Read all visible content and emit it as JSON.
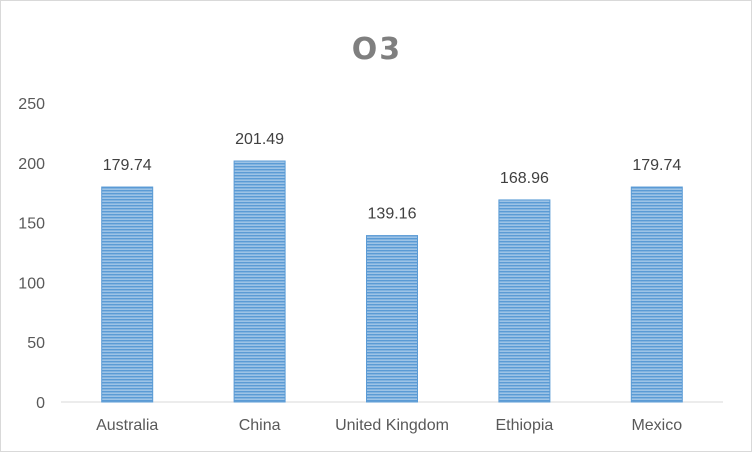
{
  "chart_data": {
    "type": "bar",
    "title": "O3",
    "xlabel": "",
    "ylabel": "",
    "categories": [
      "Australia",
      "China",
      "United Kingdom",
      "Ethiopia",
      "Mexico"
    ],
    "values": [
      179.74,
      201.49,
      139.16,
      168.96,
      179.74
    ],
    "data_labels": [
      "179.74",
      "201.49",
      "139.16",
      "168.96",
      "179.74"
    ],
    "y_ticks": [
      "0",
      "50",
      "100",
      "150",
      "200",
      "250"
    ],
    "ylim": [
      0,
      250
    ],
    "grid": false,
    "legend": "none",
    "bar_color": "#5b9bd5",
    "bar_stripe_color": "#9dc3e6"
  }
}
